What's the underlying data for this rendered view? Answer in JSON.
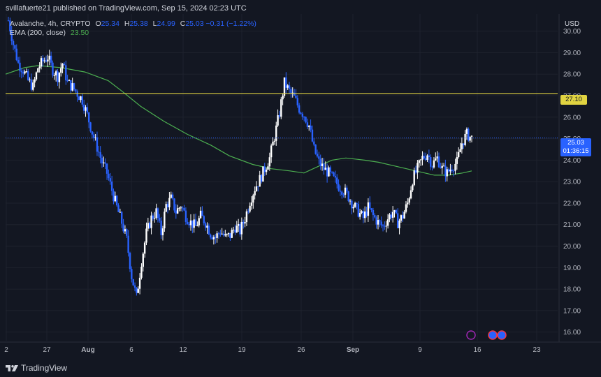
{
  "header": {
    "credit": "svillafuerte21 published on TradingView.com, Sep 15, 2024 02:23 UTC"
  },
  "legend": {
    "symbol": "Avalanche, 4h, CRYPTO",
    "open_key": "O",
    "open": "25.34",
    "high_key": "H",
    "high": "25.38",
    "low_key": "L",
    "low": "24.99",
    "close_key": "C",
    "close": "25.03",
    "change": "−0.31 (−1.22%)",
    "ema_label": "EMA (200, close)",
    "ema_value": "23.50"
  },
  "axis": {
    "currency": "USD",
    "resistance_label": "27.10",
    "price_label": "25.03",
    "countdown": "01:36:15"
  },
  "footer": {
    "brand": "TradingView"
  },
  "colors": {
    "background": "#131722",
    "candle": "#2962ff",
    "ema": "#4caf50",
    "resistance": "#e0d341",
    "grid": "#1e222d"
  },
  "chart_data": {
    "type": "candlestick",
    "y_ticks": [
      "30.00",
      "29.00",
      "28.00",
      "27.00",
      "26.00",
      "25.00",
      "24.00",
      "23.00",
      "22.00",
      "21.00",
      "20.00",
      "19.00",
      "18.00",
      "17.00",
      "16.00"
    ],
    "x_ticks": [
      "2",
      "27",
      "Aug",
      "6",
      "12",
      "19",
      "26",
      "Sep",
      "9",
      "16",
      "23"
    ],
    "ylim": [
      15.6,
      30.8
    ],
    "resistance": 27.1,
    "last_price": 25.03,
    "close_series": [
      30.5,
      29.4,
      28.5,
      28.2,
      27.7,
      27.4,
      28.3,
      28.6,
      28.8,
      28.2,
      27.9,
      28.5,
      27.6,
      27.4,
      27.1,
      26.8,
      26.1,
      25.3,
      24.6,
      23.9,
      23.4,
      22.6,
      21.8,
      21.1,
      20.3,
      18.6,
      17.6,
      19.3,
      20.6,
      21.3,
      21.6,
      20.6,
      21.9,
      22.2,
      21.6,
      21.9,
      21.4,
      21.1,
      20.9,
      21.4,
      21.1,
      20.6,
      20.4,
      20.7,
      20.4,
      20.5,
      20.9,
      20.7,
      21.3,
      22.1,
      22.7,
      23.1,
      23.6,
      24.1,
      25.1,
      26.2,
      27.6,
      27.2,
      26.9,
      26.4,
      26.1,
      25.6,
      24.5,
      23.9,
      23.6,
      23.4,
      23.1,
      22.8,
      22.6,
      22.3,
      21.9,
      21.6,
      21.3,
      21.8,
      21.4,
      21.1,
      20.9,
      21.3,
      21.6,
      21.1,
      21.4,
      22.0,
      23.1,
      23.6,
      24.1,
      24.3,
      23.8,
      24.1,
      23.6,
      23.4,
      23.7,
      23.9,
      24.8,
      25.2,
      25.03
    ],
    "ema_series": [
      28.0,
      28.3,
      28.4,
      28.3,
      28.1,
      27.7,
      27.2,
      26.5,
      25.8,
      25.2,
      24.7,
      24.2,
      23.8,
      23.6,
      23.5,
      23.4,
      23.7,
      24.0,
      24.1,
      24.0,
      23.9,
      23.7,
      23.5,
      23.3,
      23.3,
      23.4,
      23.5
    ],
    "ema_x_fraction": [
      0.0,
      0.04,
      0.07,
      0.12,
      0.17,
      0.22,
      0.25,
      0.29,
      0.34,
      0.39,
      0.44,
      0.48,
      0.53,
      0.57,
      0.61,
      0.64,
      0.67,
      0.7,
      0.73,
      0.77,
      0.8,
      0.84,
      0.88,
      0.92,
      0.95,
      0.98,
      1.0
    ]
  }
}
